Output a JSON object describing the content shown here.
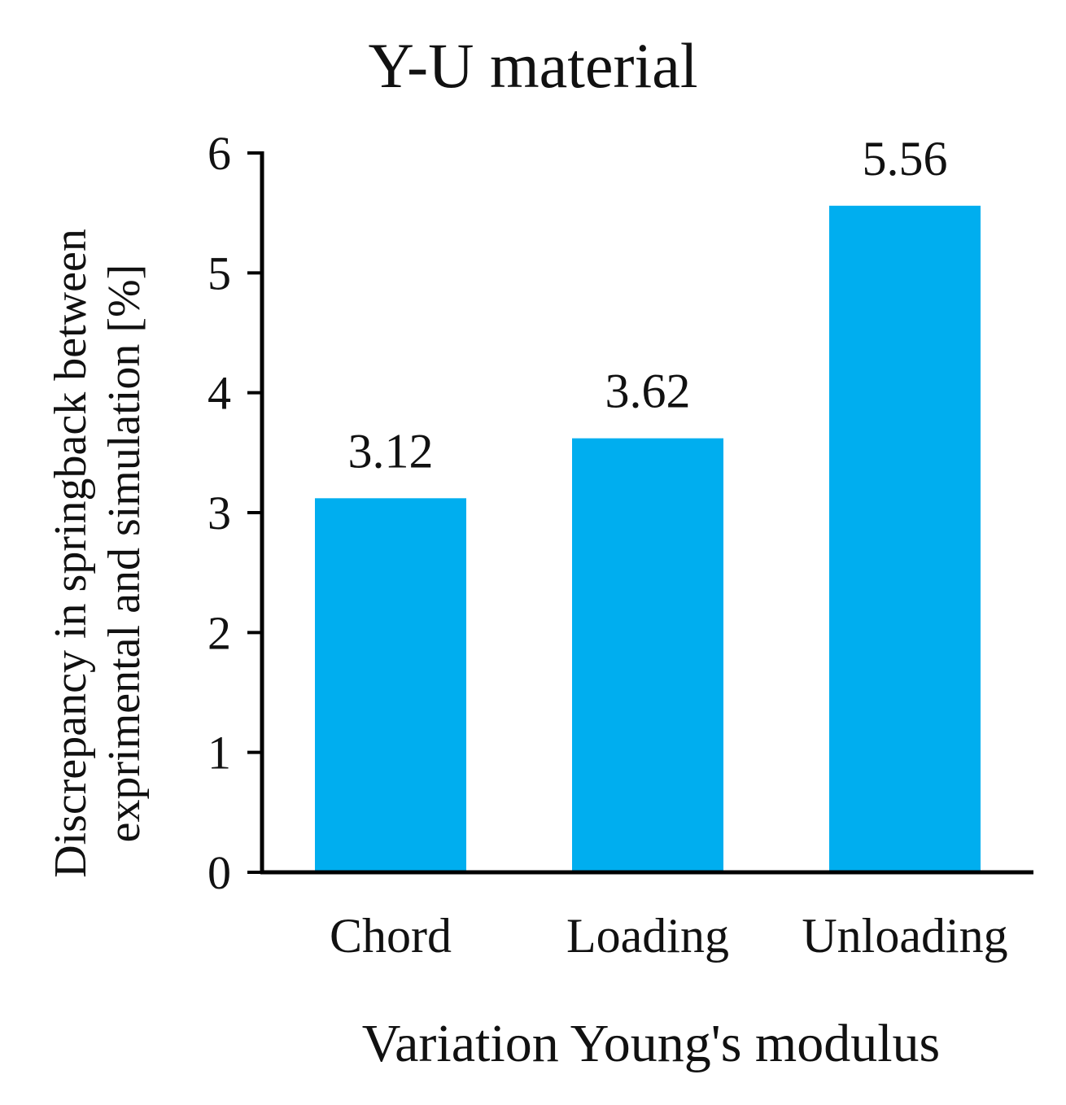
{
  "chart_data": {
    "type": "bar",
    "title": "Y-U material",
    "xlabel": "Variation Young's modulus",
    "ylabel_lines": [
      "Discrepancy in springback between",
      "exprimental  and simulation [%]"
    ],
    "categories": [
      "Chord",
      "Loading",
      "Unloading"
    ],
    "values": [
      3.12,
      3.62,
      5.56
    ],
    "data_labels": [
      "3.12",
      "3.62",
      "5.56"
    ],
    "ylim": [
      0,
      6
    ],
    "yticks": [
      "0",
      "1",
      "2",
      "3",
      "4",
      "5",
      "6"
    ],
    "grid": false,
    "bar_color": "#00aeef"
  }
}
